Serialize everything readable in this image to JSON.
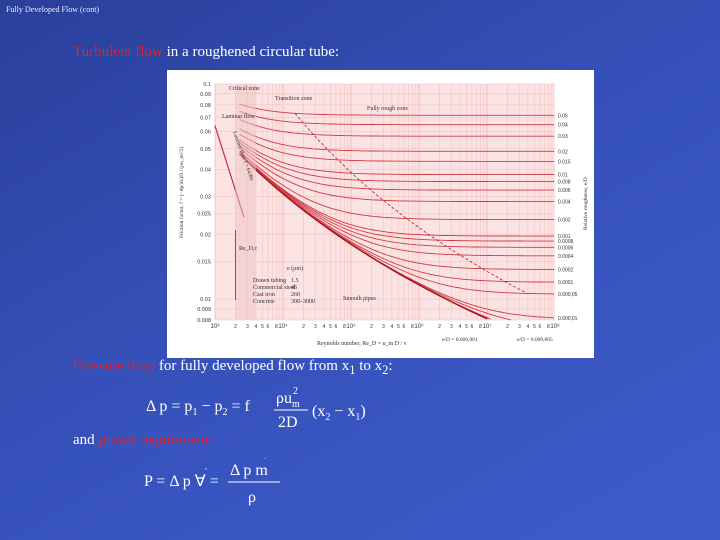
{
  "header": {
    "title": "Fully Developed Flow (cont)"
  },
  "body": {
    "line1": {
      "red": "Turbulent flow",
      "rest": " in a roughened circular tube:"
    },
    "line2": {
      "red": "Pressure drop",
      "rest": " for fully developed flow from x",
      "sub1": "1",
      "mid": " to x",
      "sub2": "2",
      "end": ":"
    },
    "line3": {
      "prefix": "and ",
      "red": "power requirement"
    }
  },
  "equations": {
    "pressure_drop": {
      "lhs": "Δ p = p",
      "s1": "1",
      "minus": " − p",
      "s2": "2",
      "eq": " = f",
      "numerator": "ρu",
      "num_sub": "m",
      "num_sup": "2",
      "denominator": "2D",
      "paren": "(x",
      "x2s": "2",
      "paren_mid": " − x",
      "x1s": "1",
      "paren_close": ")"
    },
    "power": {
      "lhs": "P = Δ p ∀",
      "dot": "˙",
      "eq": " =",
      "numerator": "Δ p m",
      "num_dot": "˙",
      "denominator": "ρ"
    }
  },
  "moody_chart": {
    "regions": {
      "critical": "Critical zone",
      "transition": "Transition zone",
      "fully_rough": "Fully rough zone",
      "laminar": "Laminar flow"
    },
    "laminar_formula": "Laminar flow f = 64/Re",
    "recrit": "Re_D,c",
    "ylabel": "Friction factor, f = (−dp/dx)D / (ρu_m²/2)",
    "xlabel": "Reynolds number, Re_D = u_m D / ν",
    "right_label": "Relative roughness, e/D",
    "smooth": "Smooth pipes",
    "f_ticks": [
      "0.1",
      "0.09",
      "0.08",
      "0.07",
      "0.06",
      "0.05",
      "0.04",
      "0.03",
      "0.025",
      "0.02",
      "0.015",
      "0.01",
      "0.009",
      "0.008"
    ],
    "x_ticks": [
      "10³",
      "2",
      "3",
      "4",
      "5",
      "6",
      "8",
      "10⁴",
      "2",
      "3",
      "4",
      "5",
      "6",
      "8",
      "10⁵",
      "2",
      "3",
      "4",
      "5",
      "6",
      "8",
      "10⁶",
      "2",
      "3",
      "4",
      "5",
      "6",
      "8",
      "10⁷",
      "2",
      "3",
      "4",
      "5",
      "6",
      "8",
      "10⁸"
    ],
    "ed_ticks": [
      "0.05",
      "0.04",
      "0.03",
      "0.02",
      "0.015",
      "0.01",
      "0.008",
      "0.006",
      "0.004",
      "0.002",
      "0.001",
      "0.0008",
      "0.0006",
      "0.0004",
      "0.0002",
      "0.0001",
      "0.000,05",
      "0.000,01"
    ],
    "material_table": {
      "header": "e (μm)",
      "rows": [
        {
          "name": "Drawn tubing",
          "e": "1.5"
        },
        {
          "name": "Commercial steel",
          "e": "46"
        },
        {
          "name": "Cast iron",
          "e": "260"
        },
        {
          "name": "Concrete",
          "e": "300–3000"
        }
      ]
    },
    "bottom_notes": [
      "e/D = 0.000,001",
      "e/D = 0.000,005"
    ]
  }
}
